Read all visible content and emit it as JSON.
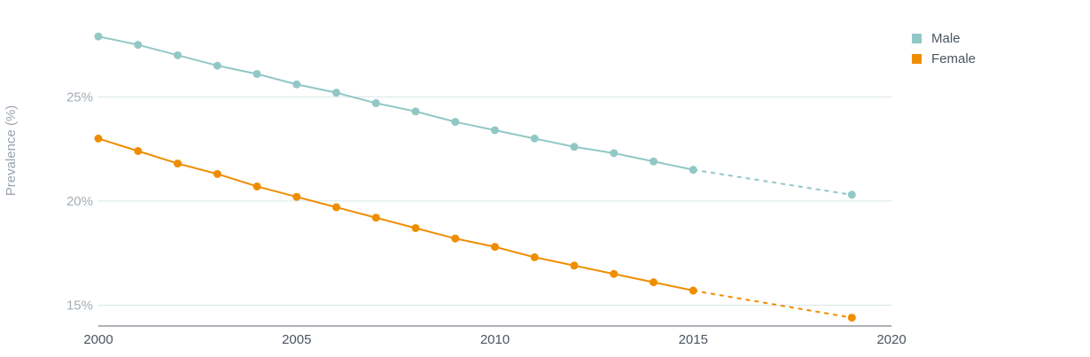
{
  "chart_data": {
    "type": "line",
    "title": "",
    "xlabel": "",
    "ylabel": "Prevalence (%)",
    "xlim": [
      2000,
      2020
    ],
    "ylim": [
      14,
      28.8
    ],
    "x_ticks": [
      2000,
      2005,
      2010,
      2015,
      2020
    ],
    "y_ticks": [
      15,
      20,
      25
    ],
    "y_tick_labels": [
      "15%",
      "20%",
      "25%"
    ],
    "grid": "horizontal",
    "legend": "top-right",
    "series": [
      {
        "name": "Male",
        "color": "#91c8c6",
        "points": [
          {
            "x": 2000,
            "y": 27.9
          },
          {
            "x": 2001,
            "y": 27.5
          },
          {
            "x": 2002,
            "y": 27.0
          },
          {
            "x": 2003,
            "y": 26.5
          },
          {
            "x": 2004,
            "y": 26.1
          },
          {
            "x": 2005,
            "y": 25.6
          },
          {
            "x": 2006,
            "y": 25.2
          },
          {
            "x": 2007,
            "y": 24.7
          },
          {
            "x": 2008,
            "y": 24.3
          },
          {
            "x": 2009,
            "y": 23.8
          },
          {
            "x": 2010,
            "y": 23.4
          },
          {
            "x": 2011,
            "y": 23.0
          },
          {
            "x": 2012,
            "y": 22.6
          },
          {
            "x": 2013,
            "y": 22.3
          },
          {
            "x": 2014,
            "y": 21.9
          },
          {
            "x": 2015,
            "y": 21.5
          }
        ],
        "projection": [
          {
            "x": 2015,
            "y": 21.5
          },
          {
            "x": 2019,
            "y": 20.3
          }
        ]
      },
      {
        "name": "Female",
        "color": "#ef8d00",
        "points": [
          {
            "x": 2000,
            "y": 23.0
          },
          {
            "x": 2001,
            "y": 22.4
          },
          {
            "x": 2002,
            "y": 21.8
          },
          {
            "x": 2003,
            "y": 21.3
          },
          {
            "x": 2004,
            "y": 20.7
          },
          {
            "x": 2005,
            "y": 20.2
          },
          {
            "x": 2006,
            "y": 19.7
          },
          {
            "x": 2007,
            "y": 19.2
          },
          {
            "x": 2008,
            "y": 18.7
          },
          {
            "x": 2009,
            "y": 18.2
          },
          {
            "x": 2010,
            "y": 17.8
          },
          {
            "x": 2011,
            "y": 17.3
          },
          {
            "x": 2012,
            "y": 16.9
          },
          {
            "x": 2013,
            "y": 16.5
          },
          {
            "x": 2014,
            "y": 16.1
          },
          {
            "x": 2015,
            "y": 15.7
          }
        ],
        "projection": [
          {
            "x": 2015,
            "y": 15.7
          },
          {
            "x": 2019,
            "y": 14.4
          }
        ]
      }
    ]
  },
  "colors": {
    "axis_text": "#9aa3ad",
    "grid": "#d7e7e6",
    "x_tick_text": "#4a5563",
    "y_tick_text": "#a3adb5",
    "axis_line": "#5b6570"
  }
}
